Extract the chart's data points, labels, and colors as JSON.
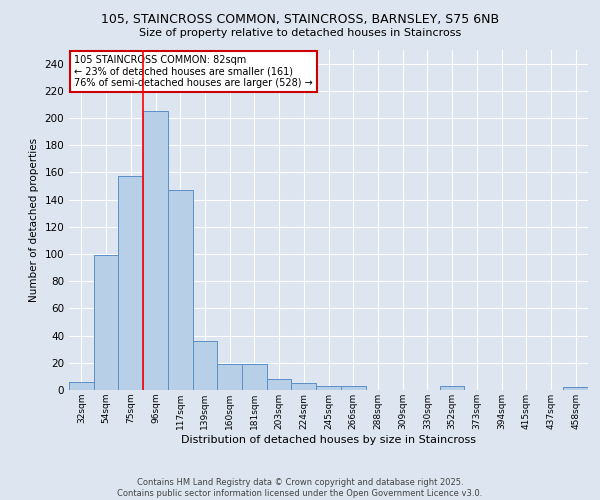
{
  "title1": "105, STAINCROSS COMMON, STAINCROSS, BARNSLEY, S75 6NB",
  "title2": "Size of property relative to detached houses in Staincross",
  "xlabel": "Distribution of detached houses by size in Staincross",
  "ylabel": "Number of detached properties",
  "categories": [
    "32sqm",
    "54sqm",
    "75sqm",
    "96sqm",
    "117sqm",
    "139sqm",
    "160sqm",
    "181sqm",
    "203sqm",
    "224sqm",
    "245sqm",
    "266sqm",
    "288sqm",
    "309sqm",
    "330sqm",
    "352sqm",
    "373sqm",
    "394sqm",
    "415sqm",
    "437sqm",
    "458sqm"
  ],
  "values": [
    6,
    99,
    157,
    205,
    147,
    36,
    19,
    19,
    8,
    5,
    3,
    3,
    0,
    0,
    0,
    3,
    0,
    0,
    0,
    0,
    2
  ],
  "bar_color": "#b8cfe8",
  "bar_edge_color": "#5b8fc9",
  "background_color": "#dde6f0",
  "grid_color": "#ffffff",
  "red_line_x": 2.5,
  "annotation_line1": "105 STAINCROSS COMMON: 82sqm",
  "annotation_line2": "← 23% of detached houses are smaller (161)",
  "annotation_line3": "76% of semi-detached houses are larger (528) →",
  "annotation_box_color": "#ffffff",
  "annotation_box_edge_color": "#cc0000",
  "ylim": [
    0,
    250
  ],
  "yticks": [
    0,
    20,
    40,
    60,
    80,
    100,
    120,
    140,
    160,
    180,
    200,
    220,
    240
  ],
  "footer1": "Contains HM Land Registry data © Crown copyright and database right 2025.",
  "footer2": "Contains public sector information licensed under the Open Government Licence v3.0."
}
